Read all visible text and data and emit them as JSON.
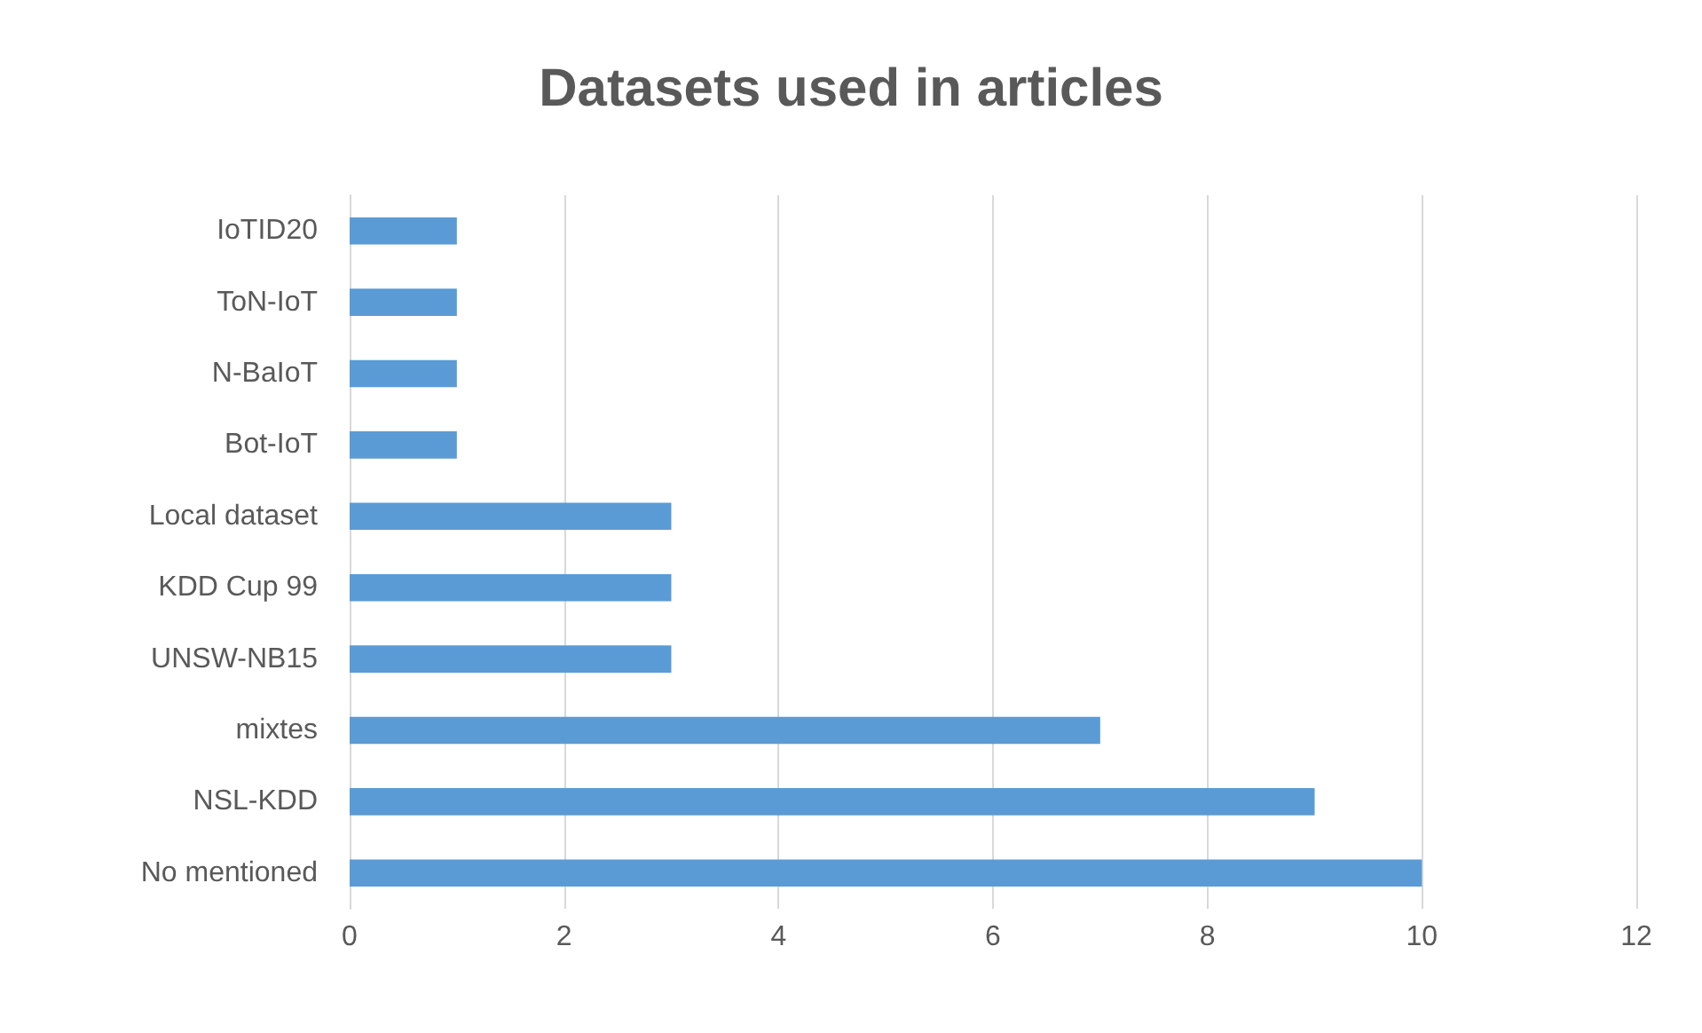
{
  "chart_data": {
    "type": "bar",
    "orientation": "horizontal",
    "title": "Datasets used in articles",
    "categories": [
      "IoTID20",
      "ToN-IoT",
      "N-BaIoT",
      "Bot-IoT",
      "Local dataset",
      "KDD Cup 99",
      "UNSW-NB15",
      "mixtes",
      "NSL-KDD",
      "No mentioned"
    ],
    "values": [
      1,
      1,
      1,
      1,
      3,
      3,
      3,
      7,
      9,
      10
    ],
    "color": "#5b9bd5",
    "xlim": [
      0,
      12
    ],
    "xticks": [
      0,
      2,
      4,
      6,
      8,
      10,
      12
    ],
    "grid": "x"
  }
}
